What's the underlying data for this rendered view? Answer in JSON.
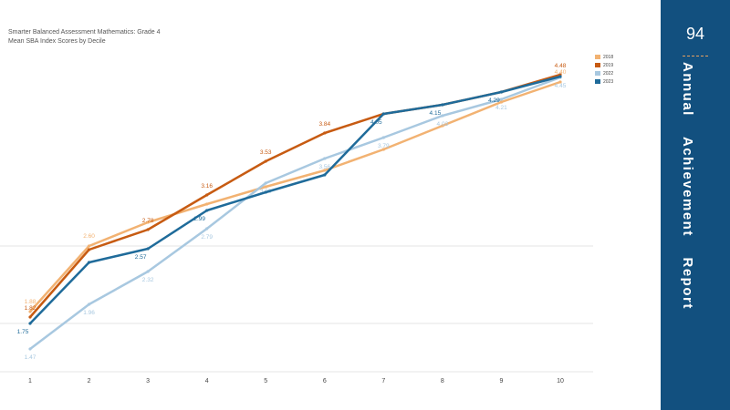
{
  "page": {
    "number": "94",
    "report_title": "Annual    Achievement    Report"
  },
  "chart_data": {
    "type": "line",
    "title": "Smarter Balanced Assessment Mathematics: Grade 4",
    "subtitle": "Mean SBA Index Scores by Decile",
    "xlabel": "",
    "ylabel": "",
    "x": [
      1,
      2,
      3,
      4,
      5,
      6,
      7,
      8,
      9,
      10
    ],
    "ylim": [
      1.3,
      4.7
    ],
    "grid": true,
    "legend": "top-right",
    "series": [
      {
        "name": "2018",
        "color": "#f2b272",
        "values": [
          1.88,
          2.6,
          2.86,
          3.06,
          3.25,
          3.43,
          3.66,
          3.92,
          4.18,
          4.4
        ],
        "labels": [
          "1.88",
          "2.60",
          "",
          "",
          "",
          "",
          "",
          "",
          "",
          "4.40"
        ]
      },
      {
        "name": "2019",
        "color": "#c75b12",
        "values": [
          1.82,
          2.56,
          2.78,
          3.16,
          3.53,
          3.84,
          4.05,
          4.15,
          4.29,
          4.48
        ],
        "labels": [
          "1.82",
          "",
          "2.78",
          "3.16",
          "3.53",
          "3.84",
          "",
          "",
          "",
          "4.48"
        ]
      },
      {
        "name": "2022",
        "color": "#a8c8e0",
        "values": [
          1.47,
          1.96,
          2.32,
          2.79,
          3.29,
          3.56,
          3.79,
          4.03,
          4.21,
          4.45
        ],
        "labels": [
          "1.47",
          "1.96",
          "2.32",
          "2.79",
          "3.29",
          "3.56",
          "3.79",
          "4.03",
          "4.21",
          "4.45"
        ]
      },
      {
        "name": "2023",
        "color": "#1f6b9a",
        "values": [
          1.75,
          2.42,
          2.57,
          2.99,
          3.19,
          3.38,
          4.05,
          4.15,
          4.29,
          4.46
        ],
        "labels": [
          "1.75",
          "",
          "2.57",
          "2.99",
          "",
          "",
          "4.05",
          "4.15",
          "4.29",
          ""
        ]
      }
    ]
  }
}
